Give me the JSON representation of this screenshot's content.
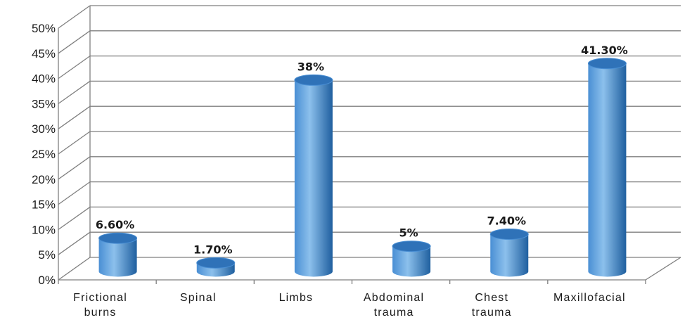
{
  "chart_data": {
    "type": "bar",
    "style": "3d-cylinder",
    "categories": [
      [
        "Frictional",
        "burns"
      ],
      [
        "Spinal"
      ],
      [
        "Limbs"
      ],
      [
        "Abdominal",
        "trauma"
      ],
      [
        "Chest",
        "trauma"
      ],
      [
        "Maxillofacial"
      ]
    ],
    "values": [
      6.6,
      1.7,
      38,
      5,
      7.4,
      41.3
    ],
    "data_labels": [
      "6.60%",
      "1.70%",
      "38%",
      "5%",
      "7.40%",
      "41.30%"
    ],
    "y_ticks": [
      "0%",
      "5%",
      "10%",
      "15%",
      "20%",
      "25%",
      "30%",
      "35%",
      "40%",
      "45%",
      "50%"
    ],
    "ylim": [
      0,
      50
    ],
    "grid": true,
    "legend": "none",
    "colors": {
      "bar_light": "#8cc0ec",
      "bar_mid": "#4a8fd4",
      "bar_dark": "#1f5f9f",
      "bar_top": "#2f72b8",
      "grid": "#7f7f7f"
    }
  }
}
